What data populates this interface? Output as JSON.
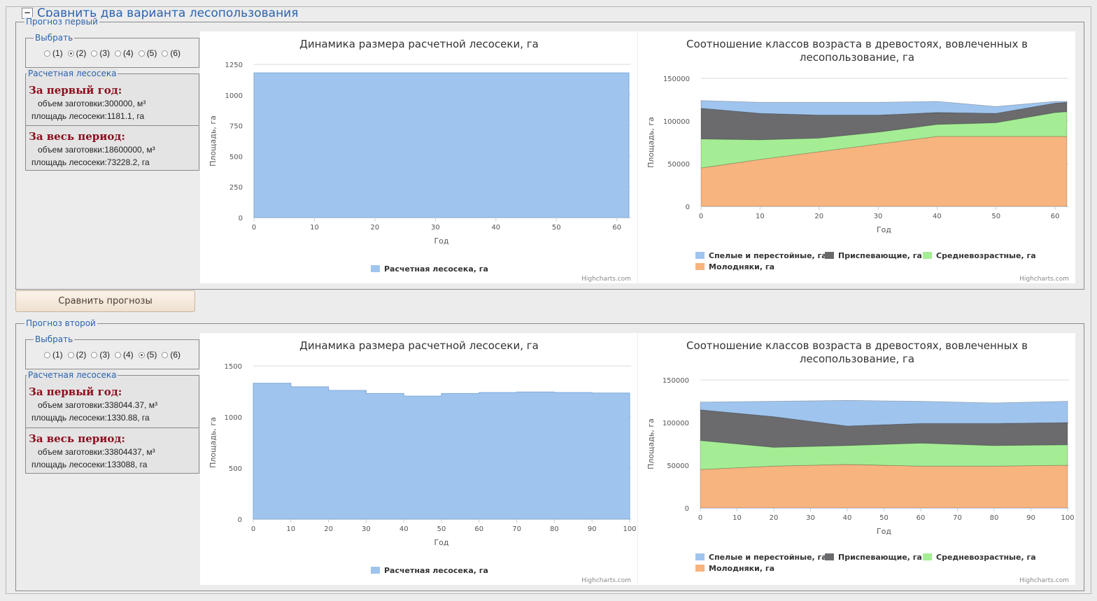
{
  "outer": {
    "collapse_symbol": "−",
    "title": "Сравнить два варианта лесопользования"
  },
  "compare_button": "Сравнить прогнозы",
  "colors": {
    "area": "#9fc5ee",
    "area_line": "#7fa9d8",
    "ripe": "#9fc5ee",
    "maturing": "#6b6b6e",
    "middle": "#a4ed94",
    "young": "#f7b47f",
    "title_red": "#8b0d1c",
    "legend_blue": "#2a63b0"
  },
  "forecasts": [
    {
      "legend": "Прогноз первый",
      "select_legend": "Выбрать",
      "options": [
        "(1)",
        "(2)",
        "(3)",
        "(4)",
        "(5)",
        "(6)"
      ],
      "selected": 1,
      "lot_legend": "Расчетная лесосека",
      "first_year": {
        "heading": "За первый год:",
        "volume": "объем заготовки:300000, м³",
        "area": "площадь лесосеки:1181.1, га"
      },
      "whole_period": {
        "heading": "За весь период:",
        "volume": "объем заготовки:18600000, м³",
        "area": "площадь лесосеки:73228.2, га"
      }
    },
    {
      "legend": "Прогноз второй",
      "select_legend": "Выбрать",
      "options": [
        "(1)",
        "(2)",
        "(3)",
        "(4)",
        "(5)",
        "(6)"
      ],
      "selected": 4,
      "lot_legend": "Расчетная лесосека",
      "first_year": {
        "heading": "За первый год:",
        "volume": "объем заготовки:338044.37, м³",
        "area": "площадь лесосеки:1330.88, га"
      },
      "whole_period": {
        "heading": "За весь период:",
        "volume": "объем заготовки:33804437, м³",
        "area": "площадь лесосеки:133088, га"
      }
    }
  ],
  "chart_data": [
    {
      "type": "area",
      "title": "Динамика размера расчетной лесосеки, га",
      "xlabel": "Год",
      "ylabel": "Площадь, га",
      "x_ticks": [
        0,
        10,
        20,
        30,
        40,
        50,
        60
      ],
      "y_ticks": [
        0,
        250,
        500,
        750,
        1000,
        1250
      ],
      "xlim": [
        0,
        62
      ],
      "ylim": [
        0,
        1250
      ],
      "step": true,
      "series": [
        {
          "name": "Расчетная лесосека, га",
          "x": [
            0,
            62
          ],
          "values": [
            1181.1,
            1181.1
          ]
        }
      ],
      "credit": "Highcharts.com",
      "legend_position": "bottom"
    },
    {
      "type": "area",
      "stacked": true,
      "title": "Соотношение классов возраста в древостоях, вовлеченных в лесопользование, га",
      "xlabel": "Год",
      "ylabel": "Площадь, га",
      "x_ticks": [
        0,
        10,
        20,
        30,
        40,
        50,
        60
      ],
      "y_ticks": [
        0,
        50000,
        100000,
        150000
      ],
      "xlim": [
        0,
        62
      ],
      "ylim": [
        0,
        150000
      ],
      "x": [
        0,
        10,
        20,
        30,
        40,
        50,
        60,
        62
      ],
      "series": [
        {
          "name": "Спелые и перестойные, га",
          "values": [
            9000,
            13000,
            15000,
            15000,
            13000,
            8000,
            2000,
            1000
          ]
        },
        {
          "name": "Приспевающие, га",
          "values": [
            36000,
            31000,
            27000,
            20000,
            14000,
            11000,
            11000,
            11000
          ]
        },
        {
          "name": "Средневозрастные, га",
          "values": [
            34000,
            23000,
            16000,
            14000,
            14000,
            16000,
            28000,
            29000
          ]
        },
        {
          "name": "Молодняки, га",
          "values": [
            45000,
            55000,
            64000,
            73000,
            82000,
            82000,
            82000,
            82000
          ]
        }
      ],
      "credit": "Highcharts.com",
      "legend_position": "bottom"
    },
    {
      "type": "area",
      "title": "Динамика размера расчетной лесосеки, га",
      "xlabel": "Год",
      "ylabel": "Площадь, га",
      "x_ticks": [
        0,
        10,
        20,
        30,
        40,
        50,
        60,
        70,
        80,
        90,
        100
      ],
      "y_ticks": [
        0,
        500,
        1000,
        1500
      ],
      "xlim": [
        0,
        100
      ],
      "ylim": [
        0,
        1500
      ],
      "step": true,
      "series": [
        {
          "name": "Расчетная лесосека, га",
          "x": [
            0,
            10,
            20,
            30,
            40,
            50,
            60,
            70,
            80,
            90,
            100
          ],
          "values": [
            1330.88,
            1295,
            1260,
            1230,
            1205,
            1230,
            1240,
            1245,
            1240,
            1235,
            1235
          ]
        }
      ],
      "credit": "Highcharts.com",
      "legend_position": "bottom"
    },
    {
      "type": "area",
      "stacked": true,
      "title": "Соотношение классов возраста в древостоях, вовлеченных в лесопользование, га",
      "xlabel": "Год",
      "ylabel": "Площадь, га",
      "x_ticks": [
        0,
        10,
        20,
        30,
        40,
        50,
        60,
        70,
        80,
        90,
        100
      ],
      "y_ticks": [
        0,
        50000,
        100000,
        150000
      ],
      "xlim": [
        0,
        100
      ],
      "ylim": [
        0,
        150000
      ],
      "x": [
        0,
        20,
        40,
        60,
        80,
        100
      ],
      "series": [
        {
          "name": "Спелые и перестойные, га",
          "values": [
            9000,
            18000,
            30000,
            26000,
            24000,
            25000
          ]
        },
        {
          "name": "Приспевающие, га",
          "values": [
            36000,
            36000,
            23000,
            23000,
            26000,
            26000
          ]
        },
        {
          "name": "Средневозрастные, га",
          "values": [
            34000,
            22000,
            22000,
            27000,
            24000,
            24000
          ]
        },
        {
          "name": "Молодняки, га",
          "values": [
            45000,
            49000,
            51000,
            49000,
            49000,
            50000
          ]
        }
      ],
      "credit": "Highcharts.com",
      "legend_position": "bottom"
    }
  ]
}
